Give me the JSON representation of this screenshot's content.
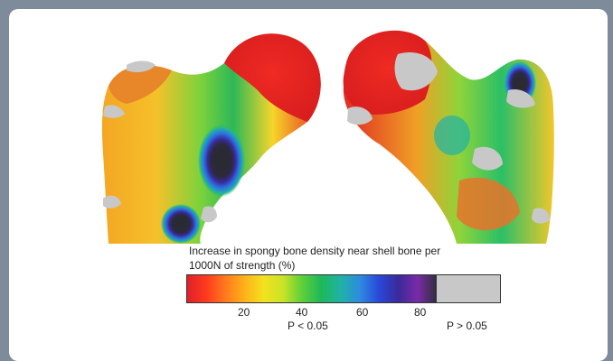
{
  "caption": {
    "line1": "Increase in spongy bone density near shell bone per",
    "line2": "1000N of strength (%)"
  },
  "colorbar": {
    "ticks": [
      "20",
      "40",
      "60",
      "80"
    ],
    "significant_label": "P < 0.05",
    "nonsignificant_label": "P > 0.05",
    "gradient_colors": [
      "#e0202a",
      "#ff3a1e",
      "#ff7a1c",
      "#ffb21a",
      "#f2e21f",
      "#c9e327",
      "#5ccf3a",
      "#1db85a",
      "#20b2a6",
      "#2d8be0",
      "#2a47d8",
      "#3a2a9a",
      "#7b2aa8",
      "#2f2f3d"
    ],
    "nonsignificant_color": "#c8c8c8"
  },
  "background_color": "#7d8b9b"
}
